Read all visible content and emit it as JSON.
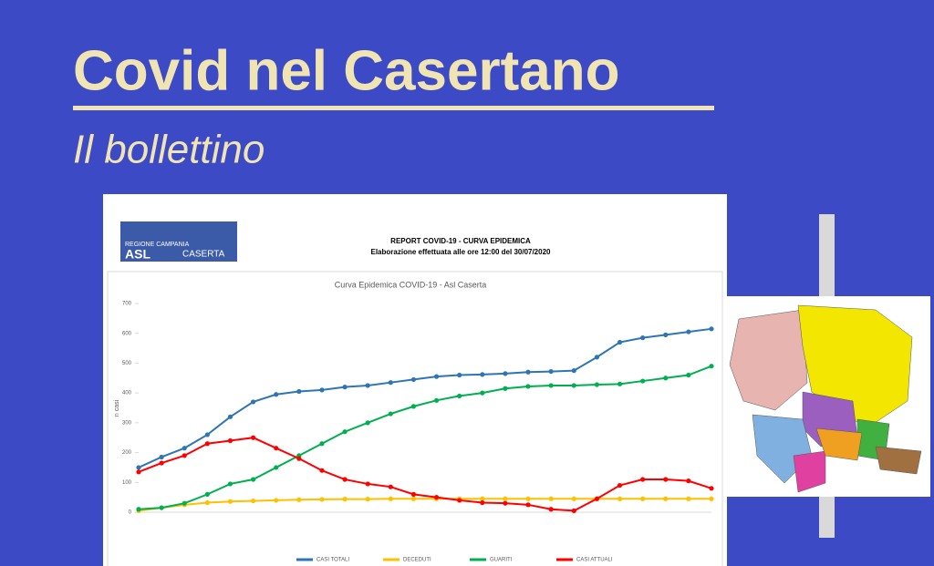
{
  "header": {
    "title": "Covid nel Casertano",
    "subtitle": "Il bollettino"
  },
  "report": {
    "logo_region": "REGIONE CAMPANIA",
    "logo_asl": "ASL",
    "logo_city": "CASERTA",
    "title": "REPORT COVID-19 - CURVA EPIDEMICA",
    "subtitle": "Elaborazione effettuata alle ore 12:00 del 30/07/2020"
  },
  "chart_data": {
    "type": "line",
    "title": "Curva Epidemica COVID-19 - Asl Caserta",
    "y_label": "n casi",
    "categories": [
      null,
      null,
      null,
      null,
      null,
      null,
      null,
      null,
      null,
      null,
      null,
      null,
      null,
      null,
      null,
      null,
      null,
      null,
      null,
      null,
      null,
      null,
      null,
      null,
      null,
      null
    ],
    "series": [
      {
        "name": "CASI TOTALI",
        "color": "#2e75b6",
        "values": [
          150,
          185,
          215,
          260,
          320,
          370,
          395,
          405,
          410,
          420,
          425,
          435,
          445,
          455,
          460,
          462,
          465,
          470,
          472,
          475,
          520,
          570,
          585,
          595,
          605,
          615
        ]
      },
      {
        "name": "DECEDUTI",
        "color": "#ffc000",
        "values": [
          5,
          15,
          25,
          32,
          36,
          38,
          40,
          42,
          43,
          44,
          44,
          45,
          45,
          45,
          45,
          45,
          45,
          45,
          45,
          45,
          45,
          45,
          45,
          45,
          45,
          45
        ]
      },
      {
        "name": "GUARITI",
        "color": "#00b050",
        "values": [
          10,
          15,
          30,
          60,
          95,
          110,
          150,
          190,
          230,
          270,
          300,
          330,
          355,
          375,
          390,
          400,
          415,
          422,
          425,
          425,
          428,
          430,
          440,
          450,
          460,
          490
        ]
      },
      {
        "name": "CASI ATTUALI",
        "color": "#ff0000",
        "values": [
          135,
          165,
          190,
          230,
          240,
          250,
          215,
          180,
          140,
          110,
          95,
          85,
          60,
          50,
          40,
          32,
          30,
          25,
          10,
          5,
          45,
          90,
          110,
          110,
          105,
          80
        ]
      }
    ],
    "ylim": [
      0,
      700
    ],
    "yticks": [
      0,
      100,
      200,
      300,
      400,
      500,
      600,
      700
    ],
    "grid": false
  }
}
